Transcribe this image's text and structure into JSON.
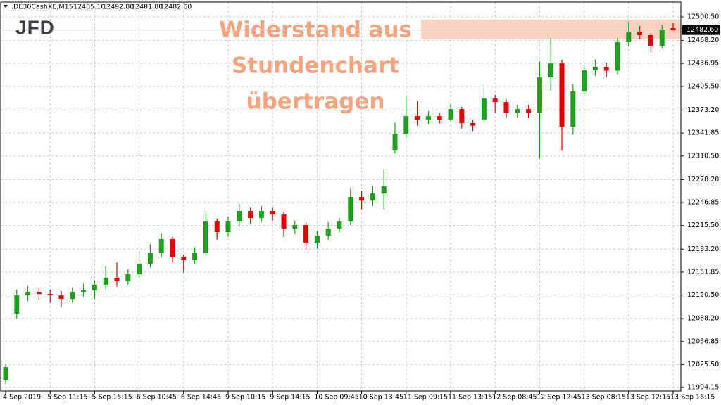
{
  "chart_data": {
    "type": "candlestick",
    "header": {
      "symbol": ".DE30CashXE,M15",
      "open": "12485.10",
      "high": "12492.80",
      "low": "12481.80",
      "close": "12482.60"
    },
    "logo": "JFD",
    "annotation": {
      "lines": [
        "Widerstand aus",
        "Stundenchart",
        "übertragen"
      ],
      "color": "#f5a47f"
    },
    "resistance_zone": [
      12469.8,
      12496.7
    ],
    "zone_color": "#fbd3c3",
    "last_price_label": "12482.60",
    "up_color": "#1ea01e",
    "down_color": "#e00000",
    "grid": true,
    "categories": [
      "4 Sep 2019",
      null,
      null,
      null,
      "5 Sep 11:15",
      null,
      null,
      null,
      "5 Sep 15:15",
      null,
      null,
      null,
      "6 Sep 10:45",
      null,
      null,
      null,
      "6 Sep 14:45",
      null,
      null,
      null,
      "9 Sep 10:15",
      null,
      null,
      null,
      "9 Sep 14:15",
      null,
      null,
      null,
      "10 Sep 09:45",
      null,
      null,
      null,
      "10 Sep 13:45",
      null,
      null,
      null,
      "11 Sep 09:15",
      null,
      null,
      null,
      "11 Sep 13:15",
      null,
      null,
      null,
      "12 Sep 08:45",
      null,
      null,
      null,
      "12 Sep 12:45",
      null,
      null,
      null,
      "13 Sep 08:15",
      null,
      null,
      null,
      "13 Sep 12:15",
      null,
      null,
      null,
      "13 Sep 16:15"
    ],
    "open": [
      12004.7,
      12095,
      12120.0,
      12124.8,
      12121.9,
      12120.0,
      12115.2,
      12124.8,
      12127.0,
      12134.4,
      12144.0,
      12139.2,
      12148.8,
      12163.3,
      12177.7,
      12196.9,
      12172.9,
      12168.1,
      12177.7,
      12220.9,
      12206.5,
      12220.9,
      12235.3,
      12225.7,
      12235.3,
      12230.5,
      12211.3,
      12216.1,
      12192.1,
      12201.7,
      12211.3,
      12220.9,
      12254.5,
      12249.7,
      12259.3,
      12318,
      12341.0,
      12365.0,
      12360.2,
      12365.0,
      12360.2,
      12374.6,
      12355.4,
      12360,
      12389.0,
      12384.2,
      12369.8,
      12374.6,
      12369.8,
      12417.9,
      12437.1,
      12350.6,
      12398.7,
      12427.5,
      12432.3,
      12427.0,
      12465.9,
      12480.3,
      12475.5,
      12461.1,
      12485.1
    ],
    "high": [
      12026,
      12128,
      12133,
      12130,
      12128,
      12126,
      12131,
      12136,
      12141,
      12160,
      12165,
      12156,
      12180,
      12190,
      12205,
      12200,
      12176,
      12186,
      12236,
      12225,
      12228,
      12245,
      12240,
      12242,
      12240,
      12234,
      12222,
      12220,
      12208,
      12220,
      12226,
      12266,
      12262,
      12270,
      12292,
      12356,
      12392,
      12385,
      12372,
      12370,
      12382,
      12378,
      12360,
      12404,
      12394,
      12388,
      12380,
      12380,
      12440,
      12472,
      12442,
      12408,
      12435,
      12442,
      12438,
      12472,
      12494,
      12488,
      12478,
      12490,
      12492.8
    ],
    "low": [
      11999,
      12088,
      12112,
      12114,
      12110,
      12104,
      12110,
      12118,
      12115,
      12128,
      12132,
      12134,
      12143,
      12158,
      12172,
      12165,
      12151,
      12163,
      12174,
      12196,
      12200,
      12214,
      12218,
      12220,
      12222,
      12200,
      12204,
      12182,
      12184,
      12196,
      12206,
      12216,
      12238,
      12242,
      12238,
      12314,
      12336,
      12352,
      12354,
      12355,
      12358,
      12348,
      12344,
      12356,
      12370,
      12362,
      12362,
      12362,
      12307,
      12400,
      12318,
      12340,
      12395,
      12420,
      12418,
      12422,
      12460,
      12470,
      12452,
      12458,
      12481.8
    ],
    "close": [
      12022.0,
      12120.0,
      12124.8,
      12121.9,
      12120.0,
      12115.2,
      12124.8,
      12127.0,
      12134.4,
      12144.0,
      12139.2,
      12148.8,
      12163.3,
      12177.7,
      12196.9,
      12172.9,
      12168.1,
      12177.7,
      12220.9,
      12206.5,
      12220.9,
      12235.3,
      12225.7,
      12235.3,
      12230.5,
      12211.3,
      12216.1,
      12192.1,
      12201.7,
      12211.3,
      12220.9,
      12254.5,
      12249.7,
      12259.3,
      12269.0,
      12341.0,
      12365.0,
      12360.2,
      12365.0,
      12360.2,
      12374.6,
      12355.4,
      12352.0,
      12389.0,
      12384.2,
      12369.8,
      12374.6,
      12369.8,
      12417.9,
      12437.1,
      12350.6,
      12398.7,
      12427.5,
      12432.3,
      12427.0,
      12465.9,
      12480.3,
      12475.5,
      12461.1,
      12483.0,
      12482.6
    ],
    "ylim": [
      11989.4,
      12520.7
    ],
    "yticks": [
      {
        "value": 12500.5,
        "label": "12500.50"
      },
      {
        "value": 12468.2,
        "label": "12468.20"
      },
      {
        "value": 12436.95,
        "label": "12436.95"
      },
      {
        "value": 12405.5,
        "label": "12405.50"
      },
      {
        "value": 12373.2,
        "label": "12373.20"
      },
      {
        "value": 12341.85,
        "label": "12341.85"
      },
      {
        "value": 12310.5,
        "label": "12310.50"
      },
      {
        "value": 12278.2,
        "label": "12278.20"
      },
      {
        "value": 12246.85,
        "label": "12246.85"
      },
      {
        "value": 12215.5,
        "label": "12215.50"
      },
      {
        "value": 12183.2,
        "label": "12183.20"
      },
      {
        "value": 12151.85,
        "label": "12151.85"
      },
      {
        "value": 12120.5,
        "label": "12120.50"
      },
      {
        "value": 12088.2,
        "label": "12088.20"
      },
      {
        "value": 12056.85,
        "label": "12056.85"
      },
      {
        "value": 12025.5,
        "label": "12025.50"
      },
      {
        "value": 11994.15,
        "label": "11994.15"
      }
    ]
  }
}
